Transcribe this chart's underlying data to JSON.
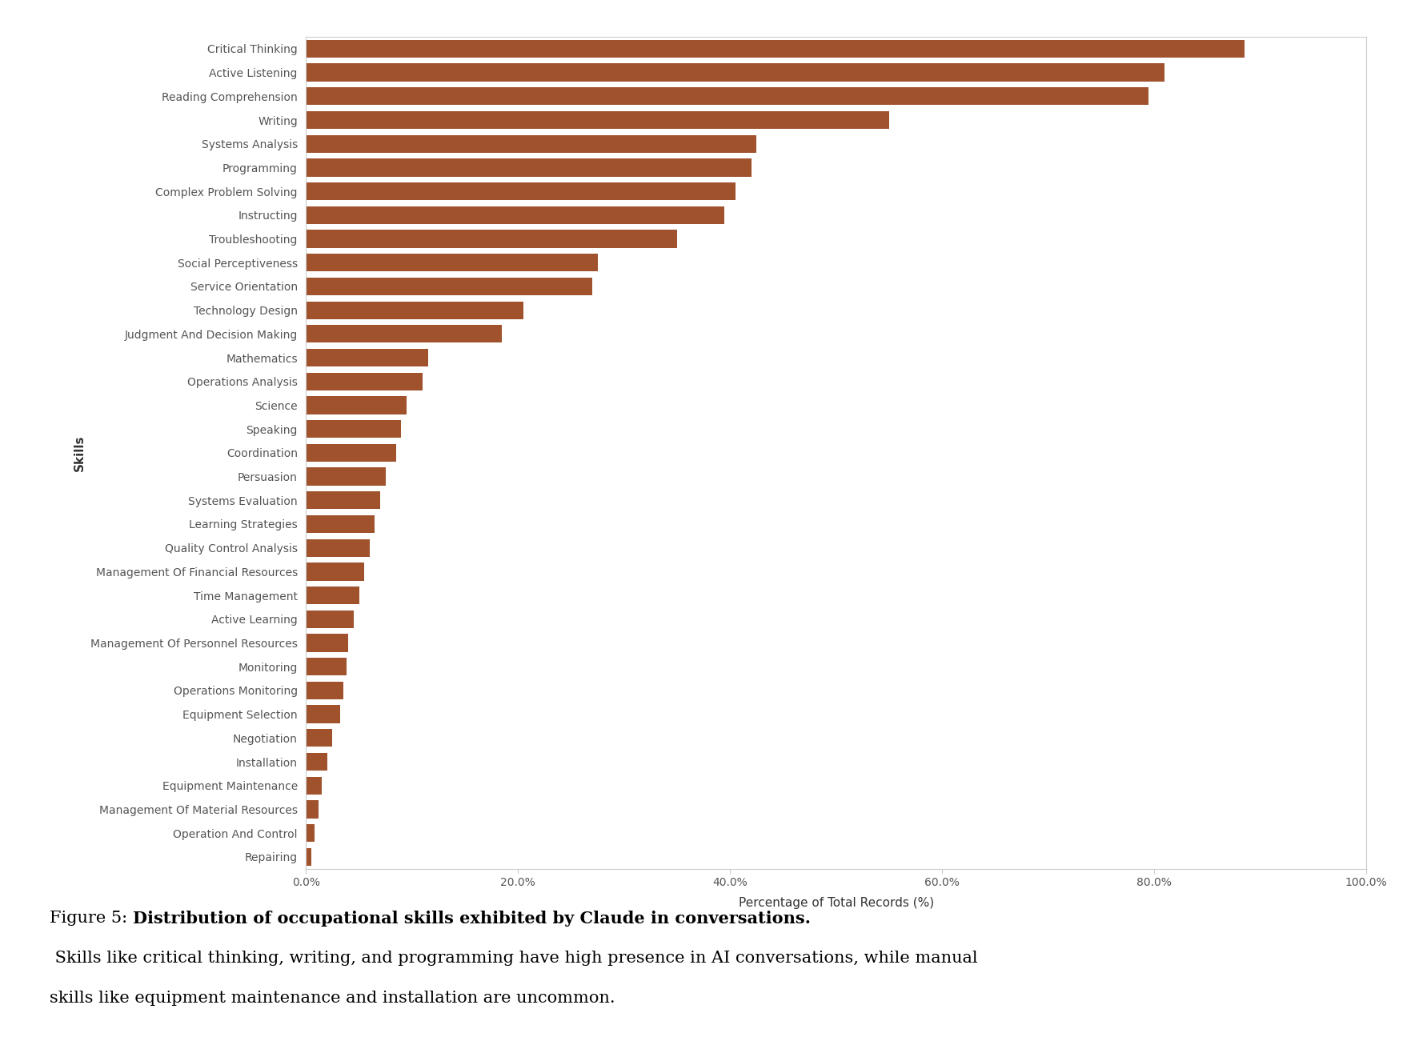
{
  "skills": [
    "Critical Thinking",
    "Active Listening",
    "Reading Comprehension",
    "Writing",
    "Systems Analysis",
    "Programming",
    "Complex Problem Solving",
    "Instructing",
    "Troubleshooting",
    "Social Perceptiveness",
    "Service Orientation",
    "Technology Design",
    "Judgment And Decision Making",
    "Mathematics",
    "Operations Analysis",
    "Science",
    "Speaking",
    "Coordination",
    "Persuasion",
    "Systems Evaluation",
    "Learning Strategies",
    "Quality Control Analysis",
    "Management Of Financial Resources",
    "Time Management",
    "Active Learning",
    "Management Of Personnel Resources",
    "Monitoring",
    "Operations Monitoring",
    "Equipment Selection",
    "Negotiation",
    "Installation",
    "Equipment Maintenance",
    "Management Of Material Resources",
    "Operation And Control",
    "Repairing"
  ],
  "values": [
    88.5,
    81.0,
    79.5,
    55.0,
    42.5,
    42.0,
    40.5,
    39.5,
    35.0,
    27.5,
    27.0,
    20.5,
    18.5,
    11.5,
    11.0,
    9.5,
    9.0,
    8.5,
    7.5,
    7.0,
    6.5,
    6.0,
    5.5,
    5.0,
    4.5,
    4.0,
    3.8,
    3.5,
    3.2,
    2.5,
    2.0,
    1.5,
    1.2,
    0.8,
    0.5
  ],
  "bar_color": "#A0522D",
  "background_color": "#ffffff",
  "xlabel": "Percentage of Total Records (%)",
  "ylabel": "Skills",
  "xlim_max": 100,
  "xtick_labels": [
    "0.0%",
    "20.0%",
    "40.0%",
    "60.0%",
    "80.0%",
    "100.0%"
  ],
  "xtick_values": [
    0,
    20,
    40,
    60,
    80,
    100
  ],
  "caption_prefix": "Figure 5: ",
  "caption_bold": "Distribution of occupational skills exhibited by Claude in conversations.",
  "caption_line2": "critical thinking, writing, and programming have high presence in AI conversations, while manual",
  "caption_line3": "skills like equipment maintenance and installation are uncommon.",
  "caption_normal_start": " Skills like ",
  "axis_label_fontsize": 11,
  "tick_fontsize": 10,
  "caption_fontsize": 15,
  "bar_height": 0.75
}
